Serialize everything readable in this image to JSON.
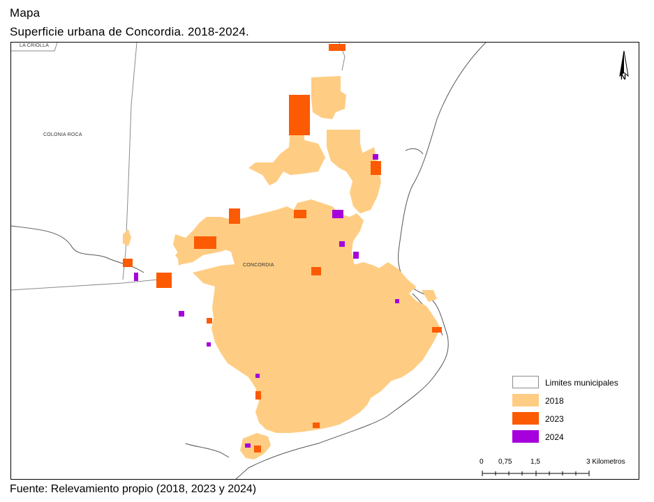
{
  "header": {
    "title": "Mapa",
    "subtitle": "Superficie urbana de Concordia. 2018-2024."
  },
  "map": {
    "place_labels": {
      "la_criolla": "LA CRIOLLA",
      "colonia_roca": "COLONIA ROCA",
      "concordia": "CONCORDIA"
    },
    "north_label": "N",
    "colors": {
      "urban_2018": "#FECD83",
      "urban_2023": "#FC5A03",
      "urban_2024": "#A601DC",
      "boundary": "#7f7f7f",
      "river": "#555555"
    }
  },
  "legend": {
    "items": [
      {
        "label": "Limites municipales",
        "color": "#ffffff",
        "border": "#8c8c8c"
      },
      {
        "label": "2018",
        "color": "#FECD83",
        "border": "#FECD83"
      },
      {
        "label": "2023",
        "color": "#FC5A03",
        "border": "#FC5A03"
      },
      {
        "label": "2024",
        "color": "#A601DC",
        "border": "#A601DC"
      }
    ]
  },
  "scale": {
    "ticks": [
      "0",
      "0,75",
      "1,5",
      "3 Kilometros"
    ]
  },
  "footer": {
    "source": "Fuente: Relevamiento propio (2018, 2023 y 2024)"
  }
}
